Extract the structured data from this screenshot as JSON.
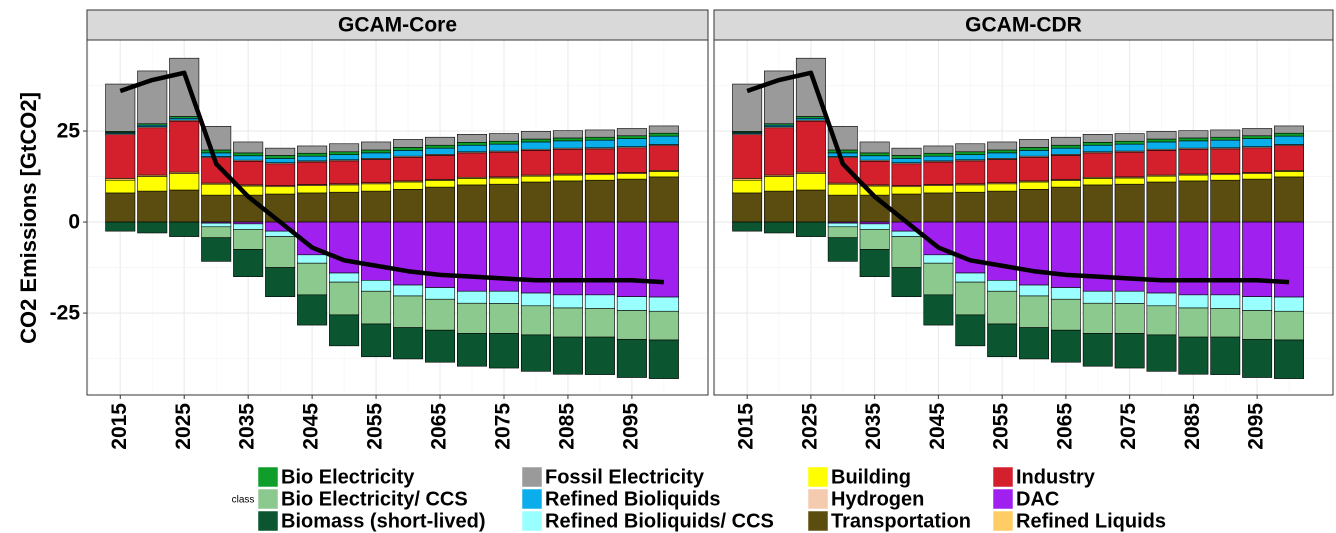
{
  "chart_data": [
    {
      "type": "bar",
      "stacked": true,
      "title": "GCAM-Core",
      "y_label": "CO2 Emissions [GtCO2]",
      "legend_title": "class",
      "x": [
        2015,
        2020,
        2025,
        2030,
        2035,
        2040,
        2045,
        2050,
        2055,
        2060,
        2065,
        2070,
        2075,
        2080,
        2085,
        2090,
        2095,
        2100
      ],
      "xlim": [
        2009.8,
        2106.9
      ],
      "xticks": [
        2015,
        2025,
        2035,
        2045,
        2055,
        2065,
        2075,
        2085,
        2095
      ],
      "ylim": [
        -47.5,
        50
      ],
      "yticks": [
        -25,
        0,
        25
      ],
      "grid": true,
      "series": [
        {
          "name": "Bio Electricity",
          "color": "#0f9e2a",
          "values": [
            0.3,
            0.4,
            0.5,
            0.8,
            0.8,
            0.8,
            0.8,
            0.8,
            0.8,
            0.8,
            0.8,
            0.8,
            0.8,
            0.8,
            0.8,
            0.8,
            0.8,
            0.8
          ]
        },
        {
          "name": "Bio Electricity/ CCS",
          "color": "#8cc98f",
          "values": [
            0,
            0,
            0,
            -3,
            -5.5,
            -8.5,
            -8.7,
            -9,
            -9,
            -8.7,
            -8.5,
            -8.3,
            -8.2,
            -8,
            -8,
            -7.9,
            -7.9,
            -7.9
          ]
        },
        {
          "name": "Biomass (short-lived)",
          "color": "#0b5631",
          "values": [
            -2.5,
            -3,
            -4,
            -6.5,
            -7.5,
            -8,
            -8.3,
            -8.5,
            -9,
            -8.6,
            -8.8,
            -9,
            -9.5,
            -10,
            -10.2,
            -10.3,
            -10.5,
            -10.6
          ]
        },
        {
          "name": "Fossil Electricity",
          "color": "#9a9a9a",
          "values": [
            13,
            14.5,
            16,
            6.5,
            3,
            2,
            2,
            2.2,
            2.2,
            2.2,
            2.2,
            2.2,
            2.1,
            2.1,
            2,
            2,
            2,
            2
          ]
        },
        {
          "name": "Refined Bioliquids",
          "color": "#0aaeea",
          "values": [
            0.3,
            0.4,
            0.5,
            1,
            1.2,
            1.2,
            1.3,
            1.4,
            1.5,
            1.6,
            1.7,
            1.8,
            1.9,
            2,
            2,
            2.1,
            2.2,
            2.3
          ]
        },
        {
          "name": "Refined Bioliquids/ CCS",
          "color": "#9affff",
          "values": [
            0,
            0,
            0,
            -1,
            -1.5,
            -1.5,
            -2.3,
            -2.5,
            -3,
            -3,
            -3.2,
            -3.3,
            -3.4,
            -3.5,
            -3.6,
            -3.7,
            -3.8,
            -3.9
          ]
        },
        {
          "name": "Building",
          "color": "#ffff00",
          "values": [
            3.5,
            4,
            4.5,
            3,
            2.5,
            2,
            2,
            2,
            2,
            2,
            1.8,
            1.8,
            1.7,
            1.6,
            1.6,
            1.5,
            1.5,
            1.5
          ]
        },
        {
          "name": "Hydrogen",
          "color": "#f5cbb0",
          "values": [
            0.3,
            0.3,
            0.3,
            0.3,
            0.3,
            0.3,
            0.3,
            0.3,
            0.3,
            0.3,
            0.3,
            0.3,
            0.3,
            0.3,
            0.3,
            0.3,
            0.3,
            0.3
          ]
        },
        {
          "name": "Transportation",
          "color": "#5a4d0f",
          "values": [
            8,
            8.5,
            8.8,
            7.4,
            7.4,
            7.7,
            8,
            8.2,
            8.5,
            9,
            9.6,
            10.2,
            10.4,
            11,
            11.3,
            11.5,
            11.8,
            12.4
          ]
        },
        {
          "name": "Industry",
          "color": "#d41f2d",
          "values": [
            12,
            13,
            14,
            7,
            6.5,
            6,
            6.2,
            6.3,
            6.4,
            6.5,
            6.6,
            6.7,
            6.8,
            6.8,
            6.8,
            6.8,
            6.8,
            6.8
          ]
        },
        {
          "name": "DAC",
          "color": "#a020f0",
          "values": [
            0,
            0,
            0,
            -0.3,
            -0.5,
            -2.5,
            -9,
            -14,
            -16,
            -17.3,
            -18,
            -19,
            -19,
            -19.5,
            -20,
            -20,
            -20.5,
            -20.6
          ]
        },
        {
          "name": "Refined Liquids",
          "color": "#ffcc66",
          "values": [
            0.5,
            0.4,
            0.4,
            0.3,
            0.3,
            0.3,
            0.3,
            0.3,
            0.3,
            0.3,
            0.3,
            0.3,
            0.3,
            0.3,
            0.3,
            0.3,
            0.3,
            0.3
          ]
        }
      ],
      "net_line": {
        "color": "#000000",
        "values": [
          36,
          39,
          41,
          16,
          7,
          0,
          -7,
          -10.5,
          -12,
          -13.5,
          -14.5,
          -15,
          -15.5,
          -16,
          -16,
          -16,
          -16,
          -16.5
        ]
      }
    },
    {
      "type": "bar",
      "stacked": true,
      "title": "GCAM-CDR",
      "x": [
        2015,
        2020,
        2025,
        2030,
        2035,
        2040,
        2045,
        2050,
        2055,
        2060,
        2065,
        2070,
        2075,
        2080,
        2085,
        2090,
        2095,
        2100
      ],
      "xlim": [
        2009.8,
        2106.9
      ],
      "xticks": [
        2015,
        2025,
        2035,
        2045,
        2055,
        2065,
        2075,
        2085,
        2095
      ],
      "ylim": [
        -47.5,
        50
      ],
      "yticks": [
        -25,
        0,
        25
      ],
      "grid": true,
      "series": [
        {
          "name": "Bio Electricity",
          "color": "#0f9e2a",
          "values": [
            0.3,
            0.4,
            0.5,
            0.8,
            0.8,
            0.8,
            0.8,
            0.8,
            0.8,
            0.8,
            0.8,
            0.8,
            0.8,
            0.8,
            0.8,
            0.8,
            0.8,
            0.8
          ]
        },
        {
          "name": "Bio Electricity/ CCS",
          "color": "#8cc98f",
          "values": [
            0,
            0,
            0,
            -3,
            -5.5,
            -8.5,
            -8.7,
            -9,
            -9,
            -8.7,
            -8.5,
            -8.3,
            -8.2,
            -8,
            -8,
            -7.9,
            -7.9,
            -7.9
          ]
        },
        {
          "name": "Biomass (short-lived)",
          "color": "#0b5631",
          "values": [
            -2.5,
            -3,
            -4,
            -6.5,
            -7.5,
            -8,
            -8.3,
            -8.5,
            -9,
            -8.6,
            -8.8,
            -9,
            -9.5,
            -10,
            -10.2,
            -10.3,
            -10.5,
            -10.6
          ]
        },
        {
          "name": "Fossil Electricity",
          "color": "#9a9a9a",
          "values": [
            13,
            14.5,
            16,
            6.5,
            3,
            2,
            2,
            2.2,
            2.2,
            2.2,
            2.2,
            2.2,
            2.1,
            2.1,
            2,
            2,
            2,
            2
          ]
        },
        {
          "name": "Refined Bioliquids",
          "color": "#0aaeea",
          "values": [
            0.3,
            0.4,
            0.5,
            1,
            1.2,
            1.2,
            1.3,
            1.4,
            1.5,
            1.6,
            1.7,
            1.8,
            1.9,
            2,
            2,
            2.1,
            2.2,
            2.3
          ]
        },
        {
          "name": "Refined Bioliquids/ CCS",
          "color": "#9affff",
          "values": [
            0,
            0,
            0,
            -1,
            -1.5,
            -1.5,
            -2.3,
            -2.5,
            -3,
            -3,
            -3.2,
            -3.3,
            -3.4,
            -3.5,
            -3.6,
            -3.7,
            -3.8,
            -3.9
          ]
        },
        {
          "name": "Building",
          "color": "#ffff00",
          "values": [
            3.5,
            4,
            4.5,
            3,
            2.5,
            2,
            2,
            2,
            2,
            2,
            1.8,
            1.8,
            1.7,
            1.6,
            1.6,
            1.5,
            1.5,
            1.5
          ]
        },
        {
          "name": "Hydrogen",
          "color": "#f5cbb0",
          "values": [
            0.3,
            0.3,
            0.3,
            0.3,
            0.3,
            0.3,
            0.3,
            0.3,
            0.3,
            0.3,
            0.3,
            0.3,
            0.3,
            0.3,
            0.3,
            0.3,
            0.3,
            0.3
          ]
        },
        {
          "name": "Transportation",
          "color": "#5a4d0f",
          "values": [
            8,
            8.5,
            8.8,
            7.4,
            7.4,
            7.7,
            8,
            8.2,
            8.5,
            9,
            9.6,
            10.2,
            10.4,
            11,
            11.3,
            11.5,
            11.8,
            12.4
          ]
        },
        {
          "name": "Industry",
          "color": "#d41f2d",
          "values": [
            12,
            13,
            14,
            7,
            6.5,
            6,
            6.2,
            6.3,
            6.4,
            6.5,
            6.6,
            6.7,
            6.8,
            6.8,
            6.8,
            6.8,
            6.8,
            6.8
          ]
        },
        {
          "name": "DAC",
          "color": "#a020f0",
          "values": [
            0,
            0,
            0,
            -0.3,
            -0.5,
            -2.5,
            -9,
            -14,
            -16,
            -17.3,
            -18,
            -19,
            -19,
            -19.5,
            -20,
            -20,
            -20.5,
            -20.6
          ]
        },
        {
          "name": "Refined Liquids",
          "color": "#ffcc66",
          "values": [
            0.5,
            0.4,
            0.4,
            0.3,
            0.3,
            0.3,
            0.3,
            0.3,
            0.3,
            0.3,
            0.3,
            0.3,
            0.3,
            0.3,
            0.3,
            0.3,
            0.3,
            0.3
          ]
        }
      ],
      "net_line": {
        "color": "#000000",
        "values": [
          36,
          39,
          41,
          16,
          7,
          0,
          -7,
          -10.5,
          -12,
          -13.5,
          -14.5,
          -15,
          -15.5,
          -16,
          -16,
          -16,
          -16,
          -16.5
        ]
      }
    }
  ]
}
